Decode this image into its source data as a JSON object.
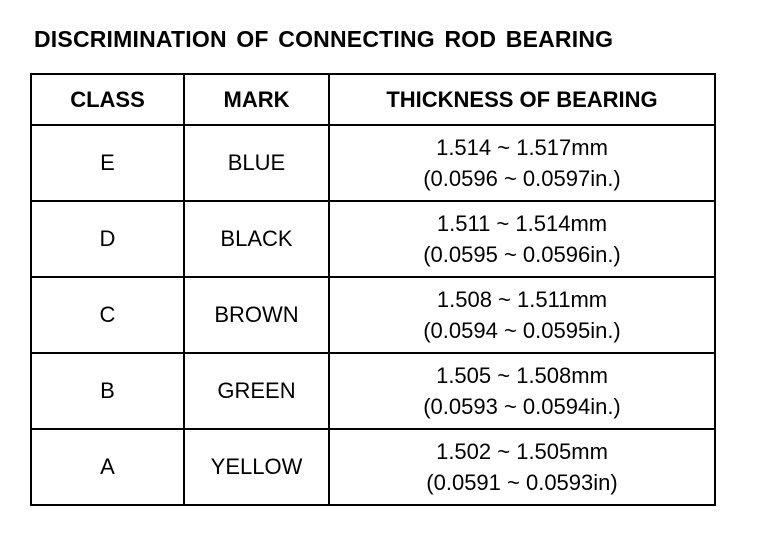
{
  "title": "DISCRIMINATION OF CONNECTING ROD BEARING",
  "table": {
    "headers": {
      "class": "CLASS",
      "mark": "MARK",
      "thickness": "THICKNESS OF BEARING"
    },
    "rows": [
      {
        "class": "E",
        "mark": "BLUE",
        "thickness_mm": "1.514 ~ 1.517mm",
        "thickness_in": "(0.0596 ~ 0.0597in.)"
      },
      {
        "class": "D",
        "mark": "BLACK",
        "thickness_mm": "1.511 ~ 1.514mm",
        "thickness_in": "(0.0595 ~ 0.0596in.)"
      },
      {
        "class": "C",
        "mark": "BROWN",
        "thickness_mm": "1.508 ~ 1.511mm",
        "thickness_in": "(0.0594 ~ 0.0595in.)"
      },
      {
        "class": "B",
        "mark": "GREEN",
        "thickness_mm": "1.505 ~ 1.508mm",
        "thickness_in": "(0.0593 ~ 0.0594in.)"
      },
      {
        "class": "A",
        "mark": "YELLOW",
        "thickness_mm": "1.502 ~ 1.505mm",
        "thickness_in": "(0.0591 ~ 0.0593in)"
      }
    ]
  }
}
